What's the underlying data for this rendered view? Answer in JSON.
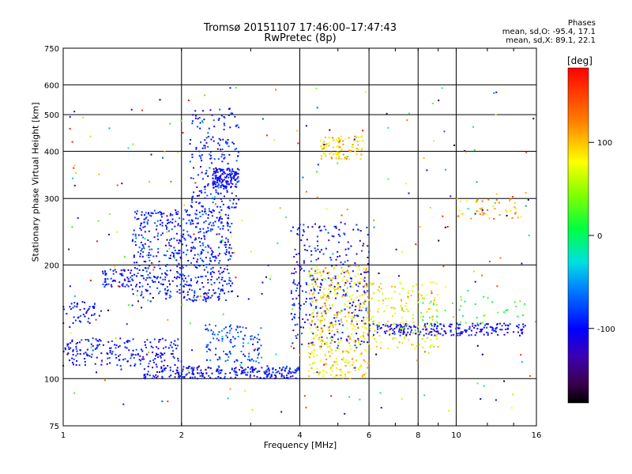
{
  "header": {
    "title_line1": "Tromsø 20151107 17:46:00–17:47:43",
    "title_line2": "RwPretec (8p)",
    "stats_title": "Phases",
    "stats_o": "mean, sd,O: -95.4, 17.1",
    "stats_x": "mean, sd,X:  89.1, 22.1"
  },
  "colorbar": {
    "unit": "[deg]",
    "tick_labels": [
      "100",
      "0",
      "-100"
    ],
    "tick_values": [
      100,
      0,
      -100
    ],
    "range": [
      -180,
      180
    ]
  },
  "chart_data": {
    "type": "scatter",
    "xlabel": "Frequency [MHz]",
    "ylabel": "Stationary phase Virtual Height [km]",
    "x_scale": "log",
    "y_scale": "log",
    "xlim": [
      1,
      16
    ],
    "ylim": [
      75,
      750
    ],
    "x_ticks": [
      1,
      2,
      4,
      6,
      8,
      10,
      16
    ],
    "x_tick_labels": [
      "1",
      "2",
      "4",
      "6",
      "8",
      "10",
      "16"
    ],
    "y_ticks": [
      75,
      100,
      200,
      300,
      400,
      500,
      600,
      750
    ],
    "y_tick_labels": [
      "75",
      "100",
      "200",
      "300",
      "400",
      "500",
      "600",
      "750"
    ],
    "grid": true,
    "clusters": [
      {
        "x_range": [
          1.6,
          4.0
        ],
        "y_range": [
          100,
          108
        ],
        "phase": -100,
        "count": 260
      },
      {
        "x_range": [
          1.0,
          2.0
        ],
        "y_range": [
          108,
          128
        ],
        "phase": -100,
        "count": 200
      },
      {
        "x_range": [
          1.0,
          1.25
        ],
        "y_range": [
          140,
          160
        ],
        "phase": -100,
        "count": 45
      },
      {
        "x_range": [
          1.25,
          1.5
        ],
        "y_range": [
          175,
          195
        ],
        "phase": -100,
        "count": 60
      },
      {
        "x_range": [
          1.5,
          2.7
        ],
        "y_range": [
          160,
          280
        ],
        "phase": -95,
        "count": 600
      },
      {
        "x_range": [
          2.1,
          2.8
        ],
        "y_range": [
          280,
          520
        ],
        "phase": -95,
        "count": 200
      },
      {
        "x_range": [
          2.4,
          2.8
        ],
        "y_range": [
          320,
          360
        ],
        "phase": -100,
        "count": 120
      },
      {
        "x_range": [
          2.3,
          3.2
        ],
        "y_range": [
          110,
          140
        ],
        "phase": -80,
        "count": 110
      },
      {
        "x_range": [
          3.8,
          6.0
        ],
        "y_range": [
          120,
          260
        ],
        "phase": -100,
        "count": 320
      },
      {
        "x_range": [
          4.2,
          6.0
        ],
        "y_range": [
          100,
          200
        ],
        "phase": 90,
        "count": 380
      },
      {
        "x_range": [
          4.5,
          5.8
        ],
        "y_range": [
          380,
          440
        ],
        "phase": 95,
        "count": 90
      },
      {
        "x_range": [
          6.0,
          15.0
        ],
        "y_range": [
          130,
          140
        ],
        "phase": -105,
        "count": 230
      },
      {
        "x_range": [
          6.0,
          9.0
        ],
        "y_range": [
          120,
          180
        ],
        "phase": 80,
        "count": 160
      },
      {
        "x_range": [
          10.0,
          14.5
        ],
        "y_range": [
          265,
          300
        ],
        "phase": 110,
        "count": 45
      },
      {
        "x_range": [
          8.0,
          15.0
        ],
        "y_range": [
          140,
          165
        ],
        "phase": 20,
        "count": 40
      },
      {
        "x_range": [
          1.0,
          16.0
        ],
        "y_range": [
          80,
          600
        ],
        "phase": 0,
        "count": 280
      }
    ]
  }
}
